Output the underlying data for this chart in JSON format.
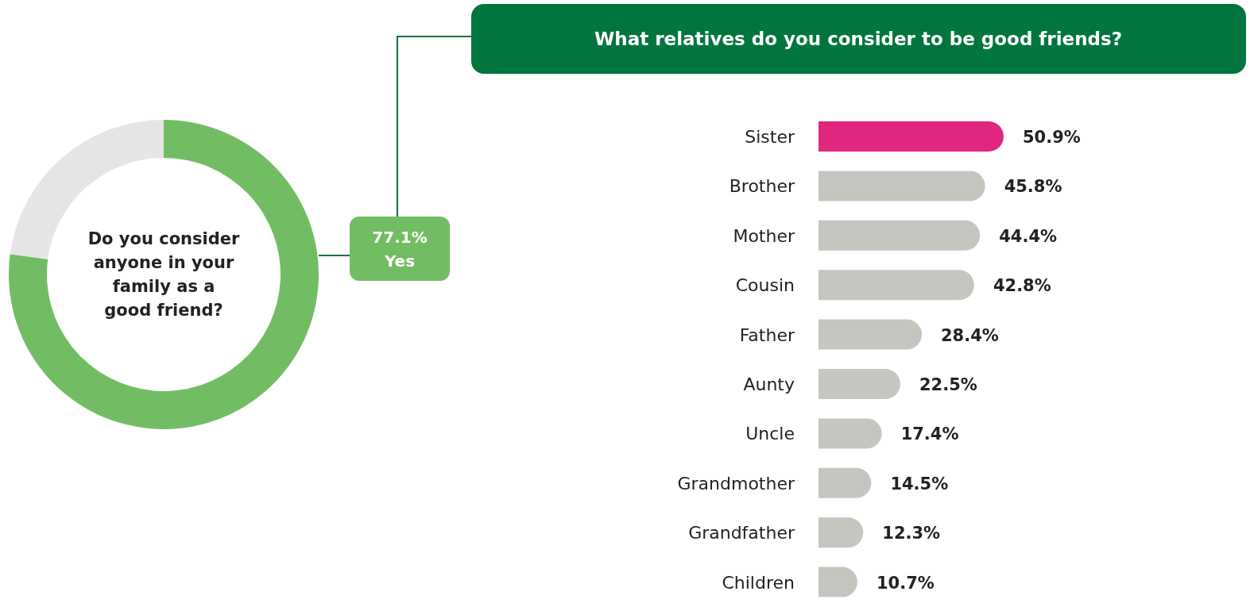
{
  "chart_data": [
    {
      "type": "donut",
      "title": "Do you consider anyone in your family as a good friend?",
      "categories": [
        "Yes",
        null
      ],
      "values": [
        77.1,
        22.9
      ],
      "colors": [
        "#72bd64",
        "#e6e6e6"
      ],
      "value_labels": [
        "77.1%",
        null
      ]
    },
    {
      "type": "bar",
      "orientation": "horizontal",
      "title": "What relatives do you consider to be good friends?",
      "categories": [
        "Sister",
        "Brother",
        "Mother",
        "Cousin",
        "Father",
        "Aunty",
        "Uncle",
        "Grandmother",
        "Grandfather",
        "Children"
      ],
      "values": [
        50.9,
        45.8,
        44.4,
        42.8,
        28.4,
        22.5,
        17.4,
        14.5,
        12.3,
        10.7
      ],
      "colors": [
        "#e0267f",
        "#c6c6c1",
        "#c6c6c1",
        "#c6c6c1",
        "#c6c6c1",
        "#c6c6c1",
        "#c6c6c1",
        "#c6c6c1",
        "#c6c6c1",
        "#c6c6c1"
      ],
      "value_labels": [
        "50.9%",
        "45.8%",
        "44.4%",
        "42.8%",
        "28.4%",
        "22.5%",
        "17.4%",
        "14.5%",
        "12.3%",
        "10.7%"
      ]
    }
  ]
}
